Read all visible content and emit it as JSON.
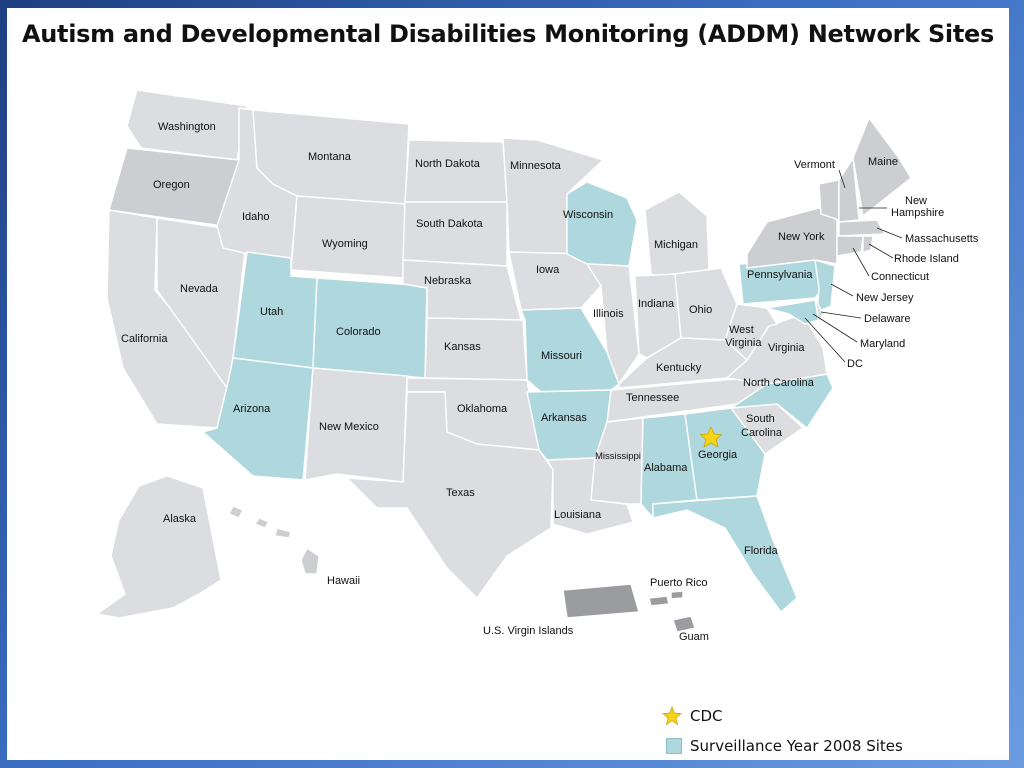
{
  "title": "Autism and Developmental Disabilities Monitoring (ADDM) Network Sites",
  "colors": {
    "site": "#aed8dd",
    "state": "#cdced1",
    "territory": "#9a9ca0",
    "cdc_star": "#f7d31a"
  },
  "states": {
    "washington": "Washington",
    "oregon": "Oregon",
    "california": "California",
    "nevada": "Nevada",
    "idaho": "Idaho",
    "montana": "Montana",
    "wyoming": "Wyoming",
    "utah": "Utah",
    "colorado": "Colorado",
    "arizona": "Arizona",
    "new_mexico": "New Mexico",
    "north_dakota": "North Dakota",
    "south_dakota": "South Dakota",
    "nebraska": "Nebraska",
    "kansas": "Kansas",
    "oklahoma": "Oklahoma",
    "texas": "Texas",
    "minnesota": "Minnesota",
    "iowa": "Iowa",
    "missouri": "Missouri",
    "arkansas": "Arkansas",
    "louisiana": "Louisiana",
    "wisconsin": "Wisconsin",
    "illinois": "Illinois",
    "michigan": "Michigan",
    "indiana": "Indiana",
    "ohio": "Ohio",
    "kentucky": "Kentucky",
    "tennessee": "Tennessee",
    "mississippi": "Mississippi",
    "alabama": "Alabama",
    "georgia": "Georgia",
    "florida": "Florida",
    "south_carolina_1": "South",
    "south_carolina_2": "Carolina",
    "north_carolina": "North Carolina",
    "virginia": "Virginia",
    "west_virginia_1": "West",
    "west_virginia_2": "Virginia",
    "pennsylvania": "Pennsylvania",
    "new_york": "New York",
    "vermont": "Vermont",
    "maine": "Maine",
    "new_hampshire_1": "New",
    "new_hampshire_2": "Hampshire",
    "massachusetts": "Massachusetts",
    "rhode_island": "Rhode Island",
    "connecticut": "Connecticut",
    "new_jersey": "New Jersey",
    "delaware": "Delaware",
    "maryland": "Maryland",
    "dc": "DC",
    "alaska": "Alaska",
    "hawaii": "Hawaii",
    "puerto_rico": "Puerto Rico",
    "virgin_islands": "U.S. Virgin Islands",
    "guam": "Guam"
  },
  "legend": {
    "cdc": "CDC",
    "sites": "Surveillance Year 2008 Sites"
  }
}
